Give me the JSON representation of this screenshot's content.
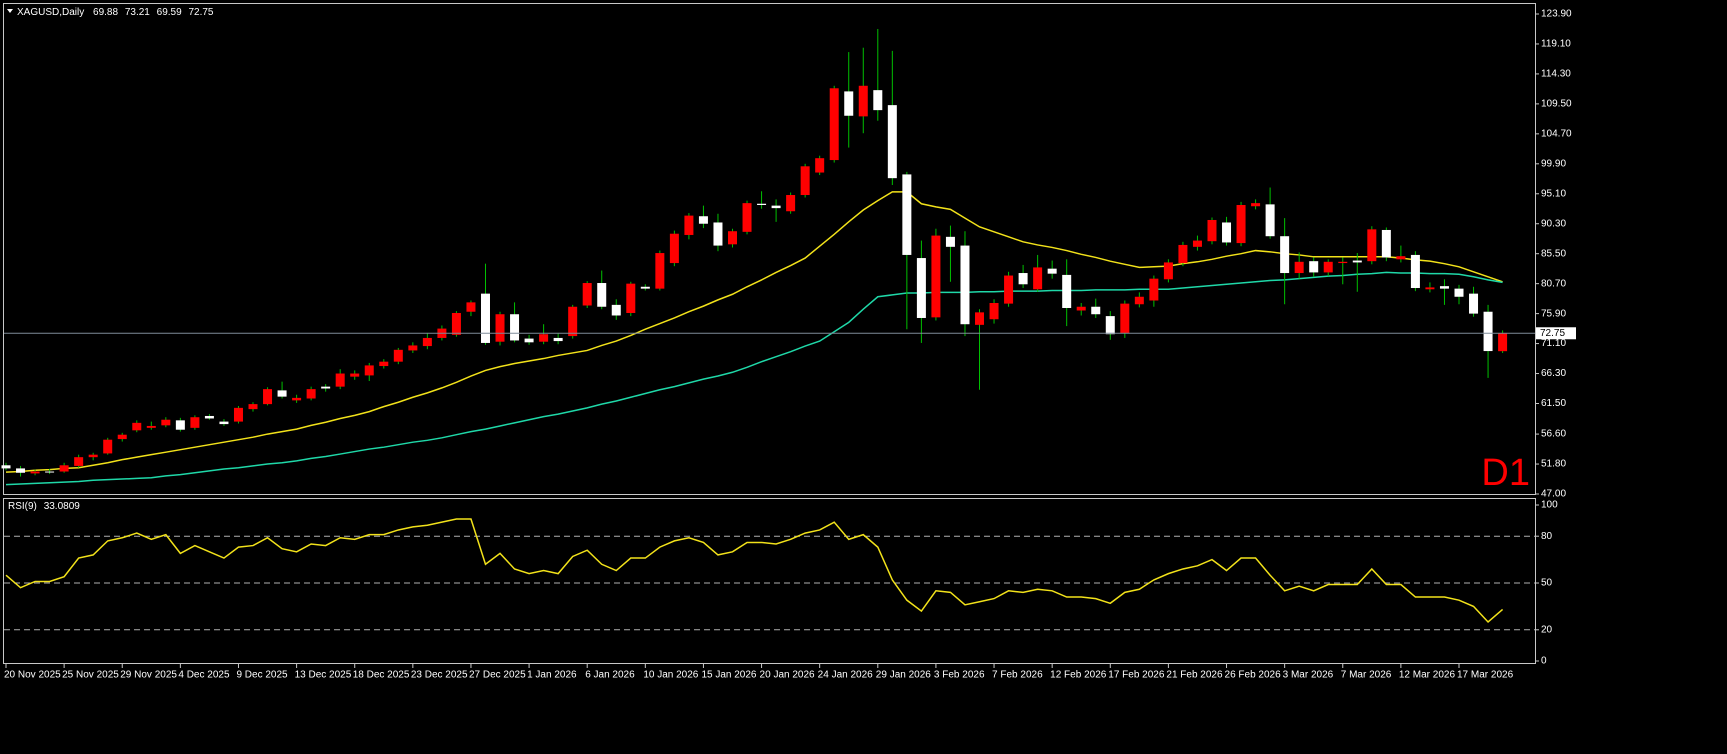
{
  "chart_data": [
    {
      "type": "candlestick",
      "title": "XAGUSD,Daily",
      "timeframe_label": "D1",
      "categories": [
        "20 Nov 2025",
        null,
        null,
        null,
        "25 Nov 2025",
        null,
        null,
        null,
        "29 Nov 2025",
        null,
        null,
        null,
        "4 Dec 2025",
        null,
        null,
        null,
        "9 Dec 2025",
        null,
        null,
        null,
        "13 Dec 2025",
        null,
        null,
        null,
        "18 Dec 2025",
        null,
        null,
        null,
        "23 Dec 2025",
        null,
        null,
        null,
        "27 Dec 2025",
        null,
        null,
        null,
        "1 Jan 2026",
        null,
        null,
        null,
        "6 Jan 2026",
        null,
        null,
        null,
        "10 Jan 2026",
        null,
        null,
        null,
        "15 Jan 2026",
        null,
        null,
        null,
        "20 Jan 2026",
        null,
        null,
        null,
        "24 Jan 2026",
        null,
        null,
        null,
        "29 Jan 2026",
        null,
        null,
        null,
        "3 Feb 2026",
        null,
        null,
        null,
        "7 Feb 2026",
        null,
        null,
        null,
        "12 Feb 2026",
        null,
        null,
        null,
        "17 Feb 2026",
        null,
        null,
        null,
        "21 Feb 2026",
        null,
        null,
        null,
        "26 Feb 2026",
        null,
        null,
        null,
        "3 Mar 2026",
        null,
        null,
        null,
        "7 Mar 2026",
        null,
        null,
        null,
        "12 Mar 2026",
        null,
        null,
        null,
        "17 Mar 2026",
        null,
        null,
        null
      ],
      "open": [
        51.6,
        51.1,
        50.3,
        50.6,
        50.6,
        51.5,
        52.9,
        53.5,
        55.8,
        57.2,
        57.6,
        58.0,
        58.8,
        57.6,
        59.5,
        58.6,
        58.6,
        60.6,
        61.4,
        63.6,
        62.0,
        62.3,
        64.2,
        64.2,
        65.8,
        66.0,
        67.5,
        68.2,
        70.0,
        70.7,
        72.0,
        72.5,
        76.2,
        79.1,
        71.4,
        75.8,
        71.9,
        71.4,
        72.0,
        72.3,
        77.2,
        80.8,
        77.3,
        76.0,
        80.2,
        79.9,
        84.0,
        88.5,
        91.5,
        90.5,
        87.0,
        89.0,
        93.5,
        93.2,
        92.3,
        94.9,
        98.5,
        100.5,
        111.5,
        107.5,
        111.7,
        109.3,
        98.2,
        84.8,
        75.3,
        88.2,
        86.8,
        74.1,
        75.0,
        77.5,
        82.4,
        79.8,
        83.1,
        82.1,
        76.4,
        77.0,
        75.5,
        72.8,
        77.4,
        78.0,
        81.4,
        84.0,
        86.6,
        87.5,
        90.5,
        87.2,
        93.1,
        93.4,
        88.3,
        82.4,
        84.3,
        82.5,
        84.0,
        84.4,
        84.3,
        89.3,
        84.6,
        85.3,
        79.8,
        80.3,
        79.9,
        79.1,
        76.2,
        69.88
      ],
      "high": [
        52.0,
        51.5,
        50.9,
        51.0,
        52.0,
        53.3,
        53.6,
        56.0,
        56.8,
        58.8,
        58.6,
        59.3,
        59.2,
        59.6,
        59.8,
        59.0,
        61.1,
        61.7,
        64.1,
        65.0,
        62.9,
        64.2,
        64.6,
        67.0,
        66.8,
        68.0,
        68.6,
        70.4,
        71.3,
        72.8,
        74.0,
        76.3,
        78.0,
        83.9,
        76.2,
        77.7,
        72.5,
        74.2,
        72.8,
        77.3,
        81.1,
        82.8,
        78.2,
        81.0,
        80.6,
        86.0,
        89.2,
        92.0,
        93.2,
        91.9,
        89.5,
        94.0,
        95.5,
        94.2,
        95.3,
        99.9,
        101.2,
        112.4,
        117.8,
        118.5,
        121.5,
        118.0,
        98.6,
        87.6,
        89.5,
        90.0,
        89.1,
        76.6,
        78.2,
        82.6,
        83.7,
        85.3,
        84.4,
        84.6,
        77.6,
        78.3,
        76.3,
        78.0,
        79.3,
        82.0,
        84.6,
        87.4,
        88.4,
        91.3,
        91.4,
        93.8,
        94.2,
        96.1,
        91.2,
        85.7,
        84.9,
        84.6,
        84.9,
        85.6,
        89.9,
        89.7,
        86.8,
        85.9,
        80.9,
        81.4,
        80.5,
        80.2,
        77.3,
        73.21
      ],
      "low": [
        50.8,
        49.8,
        50.0,
        50.2,
        50.4,
        51.2,
        52.4,
        53.3,
        55.4,
        56.9,
        57.3,
        57.7,
        57.0,
        57.3,
        58.9,
        57.9,
        58.3,
        60.2,
        61.2,
        62.3,
        61.6,
        62.0,
        63.4,
        63.8,
        65.3,
        65.1,
        67.1,
        67.8,
        69.6,
        70.2,
        71.6,
        72.2,
        75.5,
        70.9,
        70.8,
        71.3,
        70.9,
        71.0,
        71.0,
        71.9,
        76.8,
        76.6,
        74.9,
        75.5,
        79.6,
        79.6,
        83.5,
        87.8,
        89.6,
        85.9,
        86.5,
        88.6,
        92.7,
        90.6,
        91.9,
        94.5,
        98.1,
        100.1,
        102.5,
        104.8,
        106.8,
        96.5,
        73.4,
        71.2,
        74.8,
        81.0,
        72.3,
        63.7,
        74.3,
        77.0,
        80.0,
        79.4,
        81.5,
        73.9,
        75.6,
        75.2,
        71.7,
        72.0,
        76.9,
        77.0,
        80.9,
        83.5,
        86.0,
        87.0,
        86.8,
        86.7,
        92.6,
        87.9,
        77.4,
        81.5,
        81.8,
        81.9,
        80.6,
        79.4,
        83.8,
        84.3,
        84.1,
        79.5,
        79.3,
        77.3,
        77.4,
        75.4,
        65.6,
        69.59
      ],
      "close": [
        51.1,
        50.4,
        50.6,
        50.5,
        51.6,
        52.9,
        53.3,
        55.7,
        56.5,
        58.4,
        57.9,
        58.9,
        57.3,
        59.3,
        59.1,
        58.2,
        60.8,
        61.4,
        63.8,
        62.6,
        62.4,
        63.8,
        63.9,
        66.3,
        66.3,
        67.6,
        68.2,
        70.1,
        70.8,
        72.0,
        73.5,
        76.0,
        77.7,
        71.2,
        75.8,
        71.6,
        71.3,
        72.6,
        71.5,
        77.0,
        80.8,
        77.0,
        75.6,
        80.7,
        79.9,
        85.6,
        88.7,
        91.6,
        90.3,
        86.8,
        89.1,
        93.6,
        93.3,
        92.8,
        94.9,
        99.5,
        100.8,
        112.0,
        107.6,
        112.4,
        108.5,
        97.6,
        85.3,
        75.2,
        88.4,
        86.6,
        74.2,
        76.1,
        77.6,
        82.0,
        80.6,
        83.3,
        82.3,
        76.8,
        77.0,
        75.8,
        72.6,
        77.5,
        78.6,
        81.5,
        84.1,
        86.9,
        87.6,
        90.9,
        87.3,
        93.3,
        93.6,
        88.3,
        82.4,
        84.2,
        82.5,
        84.2,
        84.2,
        84.1,
        89.4,
        84.9,
        85.1,
        80.0,
        80.1,
        79.9,
        78.6,
        75.9,
        69.9,
        72.75
      ],
      "up_color": "#ff0000",
      "down_color": "#ffffff",
      "wick_color": "#00c000",
      "price_line_color": "#7f8c99",
      "series": [
        {
          "color": "#f2e21a",
          "values": [
            50.5,
            50.6,
            50.8,
            50.9,
            51.1,
            51.2,
            51.6,
            52.0,
            52.5,
            52.9,
            53.3,
            53.7,
            54.1,
            54.5,
            54.9,
            55.3,
            55.7,
            56.1,
            56.6,
            57.0,
            57.4,
            58.0,
            58.5,
            59.1,
            59.6,
            60.2,
            61.0,
            61.7,
            62.5,
            63.2,
            64.0,
            64.9,
            65.9,
            66.8,
            67.4,
            67.9,
            68.3,
            68.7,
            69.2,
            69.6,
            70.0,
            70.8,
            71.5,
            72.4,
            73.4,
            74.3,
            75.2,
            76.2,
            77.1,
            78.1,
            79.0,
            80.2,
            81.3,
            82.5,
            83.6,
            84.8,
            86.7,
            88.6,
            90.6,
            92.5,
            94.0,
            95.4,
            95.4,
            93.5,
            93.0,
            92.6,
            91.2,
            89.8,
            89.0,
            88.2,
            87.4,
            86.9,
            86.5,
            86.0,
            85.4,
            84.9,
            84.3,
            83.8,
            83.3,
            83.4,
            83.5,
            83.9,
            84.2,
            84.6,
            85.1,
            85.5,
            86.0,
            85.8,
            85.5,
            85.3,
            85.0,
            85.0,
            85.0,
            85.0,
            85.0,
            85.0,
            84.8,
            84.5,
            84.3,
            83.9,
            83.4,
            82.6,
            81.8,
            81.0
          ]
        },
        {
          "color": "#1fd8a8",
          "values": [
            48.5,
            48.6,
            48.7,
            48.8,
            48.9,
            49.0,
            49.2,
            49.3,
            49.4,
            49.5,
            49.6,
            49.9,
            50.1,
            50.4,
            50.7,
            51.0,
            51.2,
            51.5,
            51.8,
            52.0,
            52.3,
            52.7,
            53.0,
            53.4,
            53.8,
            54.2,
            54.5,
            54.9,
            55.3,
            55.6,
            56.0,
            56.5,
            57.0,
            57.4,
            57.9,
            58.4,
            58.9,
            59.4,
            59.8,
            60.3,
            60.8,
            61.4,
            61.9,
            62.5,
            63.1,
            63.7,
            64.2,
            64.8,
            65.4,
            65.9,
            66.5,
            67.3,
            68.2,
            69.0,
            69.8,
            70.7,
            71.5,
            73.0,
            74.5,
            76.6,
            78.6,
            78.9,
            79.2,
            79.2,
            79.3,
            79.3,
            79.3,
            79.4,
            79.4,
            79.5,
            79.5,
            79.5,
            79.6,
            79.6,
            79.6,
            79.7,
            79.7,
            79.7,
            79.8,
            79.8,
            79.8,
            80.0,
            80.2,
            80.4,
            80.6,
            80.8,
            81.0,
            81.2,
            81.3,
            81.5,
            81.7,
            81.9,
            82.0,
            82.2,
            82.3,
            82.5,
            82.4,
            82.4,
            82.3,
            82.3,
            82.2,
            81.8,
            81.3,
            80.9
          ]
        }
      ],
      "ylim": [
        47.0,
        123.9
      ],
      "yticks": [
        {
          "value": 47.0,
          "label": "47.00"
        },
        {
          "value": 51.8,
          "label": "51.80"
        },
        {
          "value": 56.6,
          "label": "56.60"
        },
        {
          "value": 61.5,
          "label": "61.50"
        },
        {
          "value": 66.3,
          "label": "66.30"
        },
        {
          "value": 71.1,
          "label": "71.10"
        },
        {
          "value": 75.9,
          "label": "75.90"
        },
        {
          "value": 80.7,
          "label": "80.70"
        },
        {
          "value": 85.5,
          "label": "85.50"
        },
        {
          "value": 90.3,
          "label": "90.30"
        },
        {
          "value": 95.1,
          "label": "95.10"
        },
        {
          "value": 99.9,
          "label": "99.90"
        },
        {
          "value": 104.7,
          "label": "104.70"
        },
        {
          "value": 109.5,
          "label": "109.50"
        },
        {
          "value": 114.3,
          "label": "114.30"
        },
        {
          "value": 119.1,
          "label": "119.10"
        },
        {
          "value": 123.9,
          "label": "123.90"
        }
      ]
    },
    {
      "type": "line",
      "title": "RSI(9)",
      "series": [
        {
          "color": "#f2e21a",
          "values": [
            55,
            47,
            51,
            51,
            54,
            66,
            68,
            77,
            79,
            82,
            78,
            81,
            69,
            74,
            70,
            66,
            73,
            74,
            79,
            72,
            70,
            75,
            74,
            79,
            78,
            81,
            81,
            84,
            86,
            87,
            89,
            91,
            91,
            62,
            69,
            59,
            56,
            58,
            56,
            67,
            71,
            62,
            58,
            66,
            66,
            73,
            77,
            79,
            76,
            68,
            70,
            76,
            76,
            75,
            78,
            82,
            84,
            89,
            78,
            81,
            73,
            52,
            39,
            32,
            45,
            44,
            36,
            38,
            40,
            45,
            44,
            46,
            45,
            41,
            41,
            40,
            37,
            44,
            46,
            52,
            56,
            59,
            61,
            65,
            58,
            66,
            66,
            55,
            45,
            48,
            45,
            49,
            49,
            49,
            59,
            49,
            49,
            41,
            41,
            41,
            39,
            35,
            25,
            33.0809
          ]
        }
      ],
      "levels": [
        80,
        50,
        20
      ],
      "level_color": "#b0b0b0",
      "ylim": [
        0,
        100
      ],
      "yticks": [
        0,
        20,
        50,
        80,
        100
      ]
    }
  ]
}
